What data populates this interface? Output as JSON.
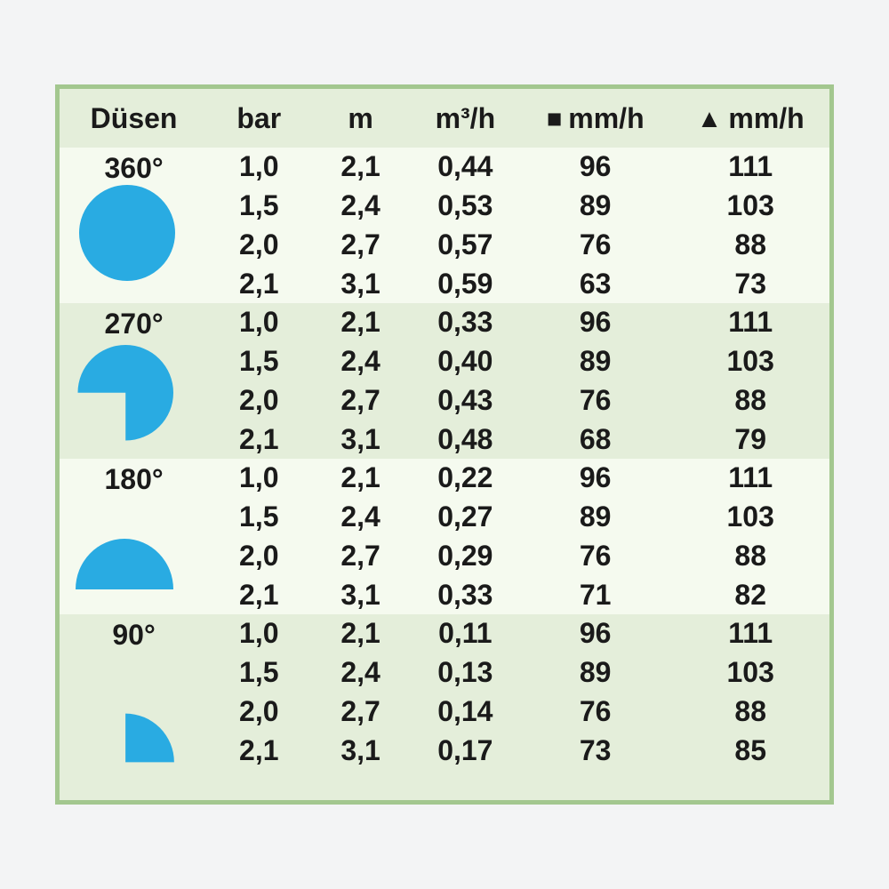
{
  "page": {
    "background": "#f3f4f5"
  },
  "table": {
    "colors": {
      "border": "#a3c78f",
      "header_bg": "#e4eeda",
      "band_green": "#e4eeda",
      "band_white": "#f5faef",
      "nozzle_icon": "#29abe2",
      "text": "#1a1a1a",
      "header_glyphs": "#111111"
    },
    "columns": [
      {
        "id": "duesen",
        "label": "Düsen"
      },
      {
        "id": "bar",
        "label": "bar"
      },
      {
        "id": "m",
        "label": "m"
      },
      {
        "id": "m3h",
        "label": "m³/h"
      },
      {
        "id": "mmh_square",
        "label": "mm/h",
        "icon_glyph": "■",
        "icon_name": "square-icon"
      },
      {
        "id": "mmh_triangle",
        "label": "mm/h",
        "icon_glyph": "▲",
        "icon_name": "triangle-icon"
      }
    ],
    "groups": [
      {
        "angle": "360°",
        "icon": "sector-360",
        "rows": [
          [
            "1,0",
            "2,1",
            "0,44",
            "96",
            "111"
          ],
          [
            "1,5",
            "2,4",
            "0,53",
            "89",
            "103"
          ],
          [
            "2,0",
            "2,7",
            "0,57",
            "76",
            "88"
          ],
          [
            "2,1",
            "3,1",
            "0,59",
            "63",
            "73"
          ]
        ]
      },
      {
        "angle": "270°",
        "icon": "sector-270",
        "rows": [
          [
            "1,0",
            "2,1",
            "0,33",
            "96",
            "111"
          ],
          [
            "1,5",
            "2,4",
            "0,40",
            "89",
            "103"
          ],
          [
            "2,0",
            "2,7",
            "0,43",
            "76",
            "88"
          ],
          [
            "2,1",
            "3,1",
            "0,48",
            "68",
            "79"
          ]
        ]
      },
      {
        "angle": "180°",
        "icon": "sector-180",
        "rows": [
          [
            "1,0",
            "2,1",
            "0,22",
            "96",
            "111"
          ],
          [
            "1,5",
            "2,4",
            "0,27",
            "89",
            "103"
          ],
          [
            "2,0",
            "2,7",
            "0,29",
            "76",
            "88"
          ],
          [
            "2,1",
            "3,1",
            "0,33",
            "71",
            "82"
          ]
        ]
      },
      {
        "angle": "90°",
        "icon": "sector-90",
        "rows": [
          [
            "1,0",
            "2,1",
            "0,11",
            "96",
            "111"
          ],
          [
            "1,5",
            "2,4",
            "0,13",
            "89",
            "103"
          ],
          [
            "2,0",
            "2,7",
            "0,14",
            "76",
            "88"
          ],
          [
            "2,1",
            "3,1",
            "0,17",
            "73",
            "85"
          ]
        ]
      }
    ]
  }
}
